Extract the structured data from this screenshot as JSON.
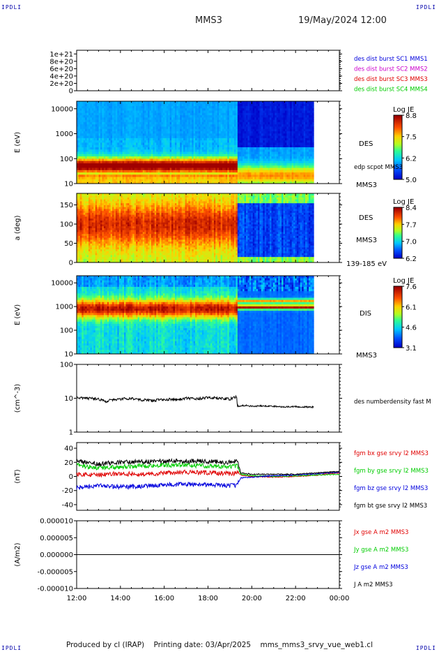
{
  "header": {
    "mission": "MMS3",
    "datetime": "19/May/2024 12:00",
    "corner_label": "IPDLI"
  },
  "footer": {
    "producer": "Produced by cl (IRAP)",
    "printing": "Printing date: 03/Apr/2025",
    "filename": "mms_mms3_srvy_vue_web1.cl"
  },
  "colors": {
    "series_red": "#e00000",
    "series_green": "#00cc00",
    "series_blue": "#0000dd",
    "series_black": "#000000",
    "series_magenta": "#cc00cc"
  },
  "chart_data": [
    {
      "type": "line",
      "id": "panel1",
      "ylim": [
        0,
        1.1e+21
      ],
      "y_tick_labels": [
        "1e+21",
        "8e+20",
        "6e+20",
        "4e+20",
        "2e+20",
        "0"
      ],
      "y_tick_values": [
        1e+21,
        8e+20,
        6e+20,
        4e+20,
        2e+20,
        0
      ],
      "baseline": "dashed line at 0",
      "legend": [
        {
          "label": "des dist burst SC1 MMS1",
          "color": "#0000dd"
        },
        {
          "label": "des dist burst SC2 MMS2",
          "color": "#cc00cc"
        },
        {
          "label": "des dist burst SC3 MMS3",
          "color": "#e00000"
        },
        {
          "label": "des dist burst SC4 MMS4",
          "color": "#00cc00"
        }
      ]
    },
    {
      "type": "heatmap",
      "id": "panel2",
      "ylabel": "E (eV)",
      "y_scale": "log",
      "ylim": [
        10,
        20000
      ],
      "y_tick_labels": [
        "10000",
        "1000",
        "100",
        "10"
      ],
      "y_tick_values": [
        10000,
        1000,
        100,
        10
      ],
      "colorbar_title": "Log JE",
      "colorbar_labels": [
        "8.8",
        "7.5",
        "6.2",
        "5.0"
      ],
      "colorbar_range": [
        5.0,
        8.8
      ],
      "right_labels": [
        "DES",
        "edp scpot MMS3",
        "MMS3"
      ],
      "data_end_hour": 22.83,
      "transition_hour": 19.33
    },
    {
      "type": "heatmap",
      "id": "panel3",
      "ylabel": "a (deg)",
      "ylim": [
        0,
        180
      ],
      "y_tick_labels": [
        "150",
        "100",
        "50",
        "0"
      ],
      "y_tick_values": [
        150,
        100,
        50,
        0
      ],
      "colorbar_title": "Log JE",
      "colorbar_labels": [
        "8.4",
        "7.7",
        "7.0",
        "6.2"
      ],
      "colorbar_range": [
        6.2,
        8.4
      ],
      "right_labels": [
        "DES",
        "MMS3",
        "139-185 eV"
      ],
      "data_end_hour": 22.83,
      "transition_hour": 19.33
    },
    {
      "type": "heatmap",
      "id": "panel4",
      "ylabel": "E (eV)",
      "y_scale": "log",
      "ylim": [
        10,
        20000
      ],
      "y_tick_labels": [
        "10000",
        "1000",
        "100",
        "10"
      ],
      "y_tick_values": [
        10000,
        1000,
        100,
        10
      ],
      "colorbar_title": "Log JE",
      "colorbar_labels": [
        "7.6",
        "6.1",
        "4.6",
        "3.1"
      ],
      "colorbar_range": [
        3.1,
        7.6
      ],
      "right_labels": [
        "DIS",
        "MMS3"
      ],
      "data_end_hour": 22.83,
      "transition_hour": 19.33
    },
    {
      "type": "line",
      "id": "panel5",
      "ylabel": "(cm^-3)",
      "y_scale": "log",
      "ylim": [
        1,
        100
      ],
      "y_tick_labels": [
        "100",
        "10",
        "1"
      ],
      "y_tick_values": [
        100,
        10,
        1
      ],
      "series": [
        {
          "name": "des numberdensity fast M",
          "color": "#000000",
          "x": [
            12.0,
            12.5,
            13.0,
            13.3,
            13.6,
            14.0,
            14.5,
            15.0,
            15.5,
            16.0,
            16.5,
            17.0,
            17.5,
            18.0,
            18.5,
            19.0,
            19.3,
            19.35,
            19.7,
            20.0,
            20.5,
            21.0,
            21.5,
            22.0,
            22.5,
            22.83
          ],
          "y": [
            10.5,
            10.0,
            9.5,
            8.0,
            9.0,
            9.5,
            10.0,
            9.0,
            8.5,
            9.5,
            9.0,
            10.0,
            9.5,
            10.5,
            10.0,
            9.5,
            11.0,
            5.8,
            6.2,
            5.8,
            6.0,
            5.8,
            5.5,
            5.7,
            5.5,
            5.5
          ]
        }
      ]
    },
    {
      "type": "line",
      "id": "panel6",
      "ylabel": "(nT)",
      "ylim": [
        -48,
        48
      ],
      "y_tick_labels": [
        "40",
        "20",
        "0",
        "-20",
        "-40"
      ],
      "y_tick_values": [
        40,
        20,
        0,
        -20,
        -40
      ],
      "series": [
        {
          "name": "fgm bx gse srvy l2 MMS3",
          "color": "#e00000",
          "x": [
            12.0,
            13.0,
            14.0,
            15.0,
            16.0,
            17.0,
            18.0,
            19.0,
            19.33,
            19.5,
            20.0,
            21.0,
            22.0,
            23.0,
            24.0
          ],
          "y": [
            3,
            2,
            4,
            3,
            5,
            6,
            5,
            4,
            5,
            2,
            0,
            -1,
            0,
            2,
            5
          ]
        },
        {
          "name": "fgm by gse srvy l2 MMS3",
          "color": "#00cc00",
          "x": [
            12.0,
            13.0,
            14.0,
            15.0,
            16.0,
            17.0,
            18.0,
            19.0,
            19.33,
            19.5,
            20.0,
            21.0,
            22.0,
            23.0,
            24.0
          ],
          "y": [
            16,
            12,
            14,
            15,
            16,
            16,
            15,
            14,
            15,
            3,
            1,
            0,
            1,
            2,
            3
          ]
        },
        {
          "name": "fgm bz gse srvy l2 MMS3",
          "color": "#0000dd",
          "x": [
            12.0,
            13.0,
            14.0,
            15.0,
            16.0,
            17.0,
            18.0,
            19.0,
            19.33,
            19.5,
            20.0,
            21.0,
            22.0,
            23.0,
            24.0
          ],
          "y": [
            -16,
            -13,
            -15,
            -14,
            -12,
            -11,
            -12,
            -13,
            -12,
            -2,
            -1,
            1,
            2,
            4,
            6
          ]
        },
        {
          "name": "fgm bt gse srvy l2 MMS3",
          "color": "#000000",
          "x": [
            12.0,
            13.0,
            14.0,
            15.0,
            16.0,
            17.0,
            18.0,
            19.0,
            19.33,
            19.5,
            20.0,
            21.0,
            22.0,
            23.0,
            24.0
          ],
          "y": [
            22,
            18,
            20,
            21,
            22,
            22,
            21,
            20,
            22,
            5,
            3,
            3,
            3,
            5,
            7
          ]
        }
      ]
    },
    {
      "type": "line",
      "id": "panel7",
      "ylabel": "(A/m2)",
      "ylim": [
        -1e-05,
        1e-05
      ],
      "y_tick_labels": [
        "0.000010",
        "0.000005",
        "0.000000",
        "-0.000005",
        "-0.000010"
      ],
      "y_tick_values": [
        1e-05,
        5e-06,
        0,
        -5e-06,
        -1e-05
      ],
      "x_tick_labels": [
        "12:00",
        "14:00",
        "16:00",
        "18:00",
        "20:00",
        "22:00",
        "00:00"
      ],
      "x_tick_values": [
        12,
        14,
        16,
        18,
        20,
        22,
        24
      ],
      "series": [
        {
          "name": "Jx gse A m2 MMS3",
          "color": "#e00000",
          "x": [
            12,
            24
          ],
          "y": [
            0,
            0
          ]
        },
        {
          "name": "Jy gse A m2 MMS3",
          "color": "#00cc00",
          "x": [
            12,
            24
          ],
          "y": [
            0,
            0
          ]
        },
        {
          "name": "Jz gse A m2 MMS3",
          "color": "#0000dd",
          "x": [
            12,
            24
          ],
          "y": [
            0,
            0
          ]
        },
        {
          "name": "J A m2 MMS3",
          "color": "#000000",
          "x": [
            12,
            24
          ],
          "y": [
            0,
            0
          ]
        }
      ]
    }
  ]
}
